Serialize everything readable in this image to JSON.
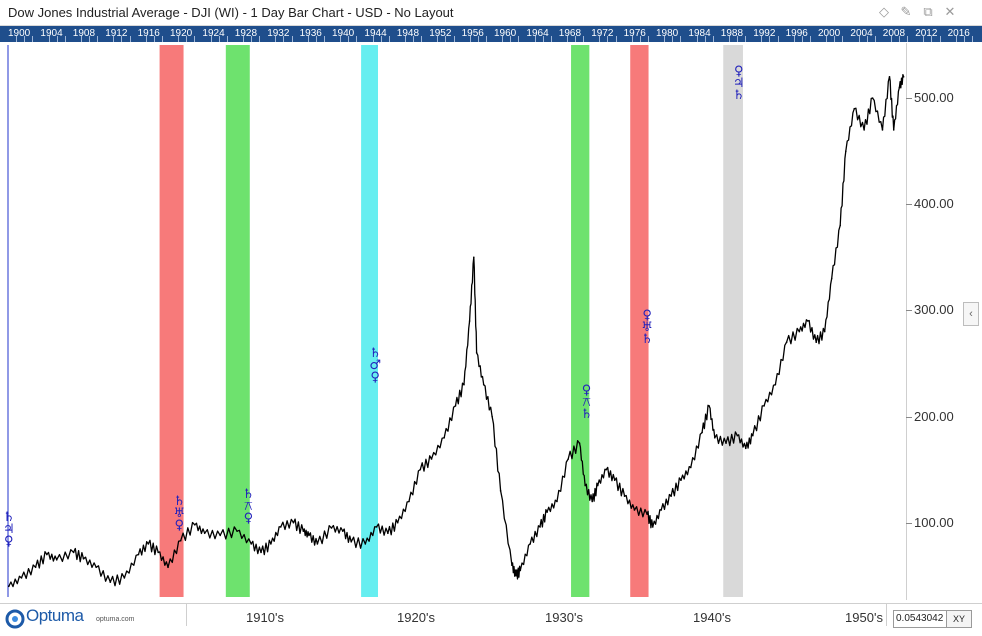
{
  "window": {
    "title": "Dow Jones Industrial Average - DJI (WI) - 1 Day Bar Chart - USD - No Layout",
    "icons": [
      "diamond-icon",
      "pin-icon",
      "restore-icon",
      "close-icon"
    ]
  },
  "ruler": {
    "years": [
      "1900",
      "1904",
      "1908",
      "1912",
      "1916",
      "1920",
      "1924",
      "1928",
      "1932",
      "1936",
      "1940",
      "1944",
      "1948",
      "1952",
      "1956",
      "1960",
      "1964",
      "1968",
      "1972",
      "1976",
      "1980",
      "1984",
      "1988",
      "1992",
      "1996",
      "2000",
      "2004",
      "2008",
      "2012",
      "2016"
    ]
  },
  "bottom": {
    "decades": [
      "1910's",
      "1920's",
      "1930's",
      "1940's",
      "1950's"
    ],
    "zoom_value": "0.0543042",
    "xy_label": "XY",
    "logo_text": "Optuma",
    "logo_url": "optuma.com"
  },
  "side_handle": "‹",
  "colors": {
    "ruler_bg": "#1f4e8c",
    "band_red": "#f77a7a",
    "band_green": "#6ee26e",
    "band_cyan": "#66eef0",
    "band_gray": "#d9d9d9",
    "price_line": "#000000",
    "glyph": "#2222bb"
  },
  "chart_data": {
    "type": "line",
    "series": [
      {
        "x": [
          1896.6,
          1897.5,
          1898.5,
          1899.3,
          1900.0,
          1901.2,
          1901.9,
          1902.8,
          1903.8,
          1904.8,
          1905.8,
          1906.5,
          1907.2,
          1907.9,
          1908.8,
          1909.8,
          1910.5,
          1911.6,
          1912.8,
          1913.8,
          1914.5,
          1915.2,
          1915.9,
          1916.8,
          1917.5,
          1917.9,
          1918.5,
          1919.5,
          1920.3,
          1920.9,
          1921.9,
          1922.7,
          1923.5,
          1924.2,
          1925.0,
          1925.8,
          1926.6,
          1927.5,
          1928.3,
          1928.9,
          1929.3,
          1929.6,
          1929.8,
          1930.3,
          1930.9,
          1931.5,
          1932.3,
          1932.6,
          1932.9,
          1933.6,
          1934.3,
          1934.8,
          1935.5,
          1936.3,
          1937.1,
          1937.5,
          1938.0,
          1938.4,
          1939.0,
          1939.6,
          1940.3,
          1941.0,
          1941.9,
          1942.3,
          1942.9,
          1943.6,
          1944.3,
          1945.0,
          1945.8,
          1946.3,
          1946.7,
          1947.5,
          1948.3,
          1948.9,
          1949.4,
          1950.2,
          1951.0,
          1951.8,
          1952.7,
          1953.3,
          1953.9,
          1954.5,
          1955.0,
          1955.6,
          1956.0,
          1956.6,
          1957.3,
          1957.9,
          1958.6,
          1959.1,
          1959.4,
          1959.8,
          1960.1
        ],
        "y": [
          40,
          48,
          58,
          70,
          65,
          72,
          66,
          58,
          44,
          48,
          70,
          80,
          72,
          58,
          83,
          98,
          90,
          88,
          92,
          80,
          72,
          80,
          96,
          100,
          92,
          88,
          80,
          95,
          92,
          82,
          80,
          96,
          90,
          100,
          120,
          150,
          160,
          180,
          210,
          230,
          290,
          350,
          260,
          230,
          200,
          130,
          60,
          50,
          55,
          80,
          96,
          110,
          120,
          160,
          175,
          135,
          120,
          135,
          150,
          140,
          125,
          112,
          108,
          96,
          112,
          125,
          140,
          152,
          185,
          210,
          180,
          175,
          182,
          170,
          182,
          210,
          230,
          270,
          280,
          290,
          270,
          280,
          330,
          380,
          450,
          490,
          470,
          500,
          470,
          520,
          470,
          510,
          520
        ]
      }
    ],
    "xlim": [
      1896.4,
      1960.2
    ],
    "ylim": [
      30,
      550
    ],
    "y_ticks": [
      "100.00",
      "200.00",
      "300.00",
      "400.00",
      "500.00"
    ],
    "y_tick_values": [
      100,
      200,
      300,
      400,
      500
    ],
    "bands": [
      {
        "from": 1907.3,
        "to": 1909.0,
        "color": "red"
      },
      {
        "from": 1912.0,
        "to": 1913.7,
        "color": "green"
      },
      {
        "from": 1921.6,
        "to": 1922.8,
        "color": "cyan"
      },
      {
        "from": 1936.5,
        "to": 1937.8,
        "color": "green"
      },
      {
        "from": 1940.7,
        "to": 1942.0,
        "color": "red"
      },
      {
        "from": 1947.3,
        "to": 1948.7,
        "color": "gray"
      }
    ],
    "glyph_groups": [
      {
        "x": 1896.6,
        "y": 110,
        "glyphs": [
          "♄",
          "♃",
          "♀"
        ]
      },
      {
        "x": 1908.7,
        "y": 125,
        "glyphs": [
          "♄",
          "♅",
          "♀"
        ]
      },
      {
        "x": 1913.6,
        "y": 132,
        "glyphs": [
          "♄",
          "⚻",
          "♀"
        ]
      },
      {
        "x": 1922.6,
        "y": 265,
        "glyphs": [
          "♄",
          "♂",
          "♀"
        ]
      },
      {
        "x": 1937.6,
        "y": 230,
        "glyphs": [
          "♀",
          "⚻",
          "♄"
        ]
      },
      {
        "x": 1941.9,
        "y": 300,
        "glyphs": [
          "♀",
          "♅",
          "♄"
        ]
      },
      {
        "x": 1948.4,
        "y": 530,
        "glyphs": [
          "♀",
          "♃",
          "♄"
        ]
      }
    ]
  }
}
